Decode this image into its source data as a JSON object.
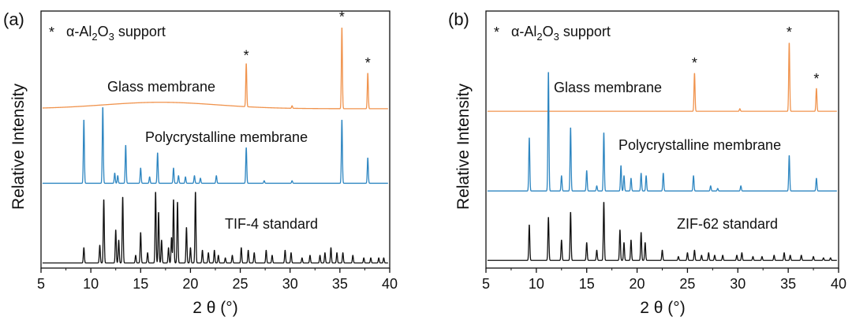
{
  "figure": {
    "panels": [
      {
        "label": "(a)",
        "marker_legend": {
          "symbol": "*",
          "prefix": "α-Al",
          "sub1": "2",
          "mid": "O",
          "sub2": "3",
          "suffix": " support"
        },
        "xlabel": "2 θ (°)",
        "ylabel": "Relative Intensity",
        "traces": {
          "glass": "Glass membrane",
          "poly": "Polycrystalline membrane",
          "standard": "TIF-4 standard"
        }
      },
      {
        "label": "(b)",
        "marker_legend": {
          "symbol": "*",
          "prefix": "α-Al",
          "sub1": "2",
          "mid": "O",
          "sub2": "3",
          "suffix": " support"
        },
        "xlabel": "2 θ (°)",
        "ylabel": "Relative Intensity",
        "traces": {
          "glass": "Glass membrane",
          "poly": "Polycrystalline membrane",
          "standard": "ZIF-62 standard"
        }
      }
    ]
  },
  "chart_data": [
    {
      "type": "line",
      "panel": "(a)",
      "xlabel": "2 θ (°)",
      "ylabel": "Relative Intensity",
      "xlim": [
        5,
        40
      ],
      "xticks": [
        5,
        10,
        15,
        20,
        25,
        30,
        35,
        40
      ],
      "yticks_shown": false,
      "colors": {
        "glass": "#f0934d",
        "poly": "#2e86c1",
        "standard": "#111111"
      },
      "series": [
        {
          "name": "Glass membrane",
          "key": "glass",
          "offset": 0.62,
          "hump": {
            "center": 17,
            "width": 8,
            "height": 0.025
          },
          "peaks": [
            [
              25.6,
              0.17
            ],
            [
              35.2,
              0.32
            ],
            [
              37.8,
              0.14
            ],
            [
              30.2,
              0.01
            ]
          ],
          "star_peaks": [
            25.6,
            35.2,
            37.8
          ]
        },
        {
          "name": "Polycrystalline membrane",
          "key": "poly",
          "offset": 0.33,
          "peaks": [
            [
              9.3,
              0.25
            ],
            [
              11.2,
              0.3
            ],
            [
              12.4,
              0.04
            ],
            [
              12.7,
              0.03
            ],
            [
              13.5,
              0.15
            ],
            [
              15.0,
              0.06
            ],
            [
              15.9,
              0.025
            ],
            [
              16.7,
              0.12
            ],
            [
              18.3,
              0.06
            ],
            [
              18.8,
              0.03
            ],
            [
              19.5,
              0.025
            ],
            [
              20.4,
              0.03
            ],
            [
              21.0,
              0.02
            ],
            [
              22.6,
              0.03
            ],
            [
              25.6,
              0.14
            ],
            [
              27.4,
              0.01
            ],
            [
              30.2,
              0.01
            ],
            [
              35.2,
              0.25
            ],
            [
              37.8,
              0.1
            ]
          ]
        },
        {
          "name": "TIF-4 standard",
          "key": "standard",
          "offset": 0.02,
          "peaks": [
            [
              9.3,
              0.06
            ],
            [
              10.9,
              0.07
            ],
            [
              11.3,
              0.25
            ],
            [
              12.5,
              0.13
            ],
            [
              12.8,
              0.09
            ],
            [
              13.2,
              0.26
            ],
            [
              14.5,
              0.03
            ],
            [
              15.0,
              0.12
            ],
            [
              15.7,
              0.04
            ],
            [
              16.5,
              0.28
            ],
            [
              16.8,
              0.2
            ],
            [
              17.1,
              0.09
            ],
            [
              17.8,
              0.06
            ],
            [
              18.1,
              0.1
            ],
            [
              18.3,
              0.25
            ],
            [
              18.7,
              0.24
            ],
            [
              19.6,
              0.14
            ],
            [
              20.0,
              0.06
            ],
            [
              20.5,
              0.28
            ],
            [
              21.2,
              0.05
            ],
            [
              21.8,
              0.04
            ],
            [
              22.4,
              0.05
            ],
            [
              22.8,
              0.03
            ],
            [
              23.5,
              0.02
            ],
            [
              24.2,
              0.03
            ],
            [
              25.1,
              0.06
            ],
            [
              25.8,
              0.05
            ],
            [
              26.4,
              0.04
            ],
            [
              27.6,
              0.05
            ],
            [
              28.2,
              0.03
            ],
            [
              29.5,
              0.05
            ],
            [
              30.1,
              0.04
            ],
            [
              31.2,
              0.02
            ],
            [
              32.0,
              0.03
            ],
            [
              33.0,
              0.03
            ],
            [
              33.5,
              0.04
            ],
            [
              34.1,
              0.06
            ],
            [
              34.7,
              0.04
            ],
            [
              35.3,
              0.04
            ],
            [
              36.3,
              0.03
            ],
            [
              37.4,
              0.02
            ],
            [
              38.1,
              0.02
            ],
            [
              38.9,
              0.02
            ],
            [
              39.4,
              0.02
            ]
          ]
        }
      ]
    },
    {
      "type": "line",
      "panel": "(b)",
      "xlabel": "2 θ (°)",
      "ylabel": "Relative Intensity",
      "xlim": [
        5,
        40
      ],
      "xticks": [
        5,
        10,
        15,
        20,
        25,
        30,
        35,
        40
      ],
      "yticks_shown": false,
      "colors": {
        "glass": "#f0934d",
        "poly": "#2e86c1",
        "standard": "#111111"
      },
      "series": [
        {
          "name": "Glass membrane",
          "key": "glass",
          "offset": 0.61,
          "hump": {
            "center": 17,
            "width": 8,
            "height": 0.0
          },
          "peaks": [
            [
              25.7,
              0.15
            ],
            [
              35.1,
              0.27
            ],
            [
              37.8,
              0.09
            ],
            [
              30.2,
              0.01
            ]
          ],
          "star_peaks": [
            25.7,
            35.1,
            37.8
          ]
        },
        {
          "name": "Polycrystalline membrane",
          "key": "poly",
          "offset": 0.3,
          "peaks": [
            [
              9.3,
              0.21
            ],
            [
              11.2,
              0.47
            ],
            [
              12.5,
              0.06
            ],
            [
              13.4,
              0.25
            ],
            [
              15.0,
              0.08
            ],
            [
              16.0,
              0.02
            ],
            [
              16.7,
              0.23
            ],
            [
              18.4,
              0.1
            ],
            [
              18.7,
              0.06
            ],
            [
              19.4,
              0.05
            ],
            [
              20.4,
              0.07
            ],
            [
              20.9,
              0.06
            ],
            [
              22.6,
              0.07
            ],
            [
              25.6,
              0.06
            ],
            [
              27.3,
              0.02
            ],
            [
              28.0,
              0.01
            ],
            [
              30.3,
              0.02
            ],
            [
              35.1,
              0.14
            ],
            [
              37.8,
              0.05
            ]
          ]
        },
        {
          "name": "ZIF-62 standard",
          "key": "standard",
          "offset": 0.03,
          "peaks": [
            [
              9.3,
              0.14
            ],
            [
              11.2,
              0.17
            ],
            [
              12.5,
              0.08
            ],
            [
              13.4,
              0.19
            ],
            [
              15.0,
              0.07
            ],
            [
              16.0,
              0.04
            ],
            [
              16.7,
              0.23
            ],
            [
              18.3,
              0.12
            ],
            [
              18.7,
              0.07
            ],
            [
              19.4,
              0.08
            ],
            [
              20.4,
              0.11
            ],
            [
              20.8,
              0.07
            ],
            [
              22.5,
              0.04
            ],
            [
              24.1,
              0.015
            ],
            [
              25.0,
              0.03
            ],
            [
              25.7,
              0.04
            ],
            [
              26.4,
              0.02
            ],
            [
              27.1,
              0.03
            ],
            [
              27.7,
              0.02
            ],
            [
              28.5,
              0.02
            ],
            [
              29.9,
              0.02
            ],
            [
              30.4,
              0.03
            ],
            [
              31.5,
              0.015
            ],
            [
              32.4,
              0.015
            ],
            [
              33.6,
              0.02
            ],
            [
              34.6,
              0.03
            ],
            [
              35.2,
              0.02
            ],
            [
              36.3,
              0.02
            ],
            [
              37.5,
              0.015
            ],
            [
              38.5,
              0.01
            ],
            [
              39.2,
              0.01
            ]
          ]
        }
      ]
    }
  ]
}
